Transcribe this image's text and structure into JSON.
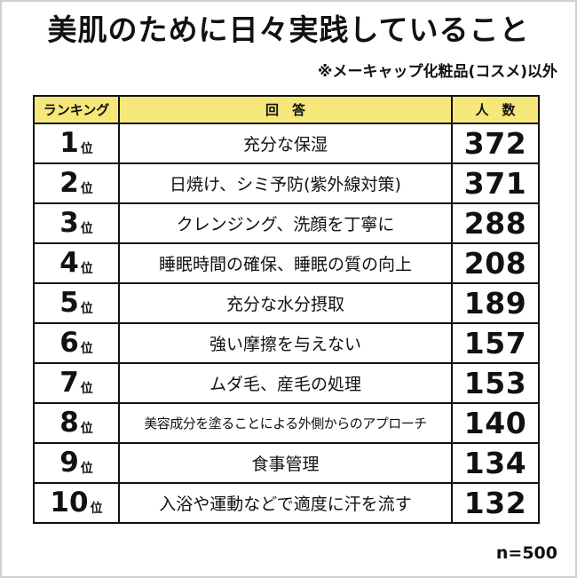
{
  "title": "美肌のために日々実践していること",
  "note": "※メーキャップ化粧品(コスメ)以外",
  "header": {
    "rank": "ランキング",
    "answer": "回　答",
    "count": "人　数"
  },
  "rank_suffix": "位",
  "footer": "n=500",
  "colors": {
    "header_bg": "#f5e77a",
    "border": "#111111"
  },
  "chart_data": {
    "type": "table",
    "columns": [
      "ランキング",
      "回　答",
      "人　数"
    ],
    "rows": [
      {
        "rank": "1",
        "answer": "充分な保湿",
        "count": "372"
      },
      {
        "rank": "2",
        "answer": "日焼け、シミ予防(紫外線対策)",
        "count": "371"
      },
      {
        "rank": "3",
        "answer": "クレンジング、洗顔を丁寧に",
        "count": "288"
      },
      {
        "rank": "4",
        "answer": "睡眠時間の確保、睡眠の質の向上",
        "count": "208"
      },
      {
        "rank": "5",
        "answer": "充分な水分摂取",
        "count": "189"
      },
      {
        "rank": "6",
        "answer": "強い摩擦を与えない",
        "count": "157"
      },
      {
        "rank": "7",
        "answer": "ムダ毛、産毛の処理",
        "count": "153"
      },
      {
        "rank": "8",
        "answer": "美容成分を塗ることによる外側からのアプローチ",
        "count": "140"
      },
      {
        "rank": "9",
        "answer": "食事管理",
        "count": "134"
      },
      {
        "rank": "10",
        "answer": "入浴や運動などで適度に汗を流す",
        "count": "132"
      }
    ]
  }
}
